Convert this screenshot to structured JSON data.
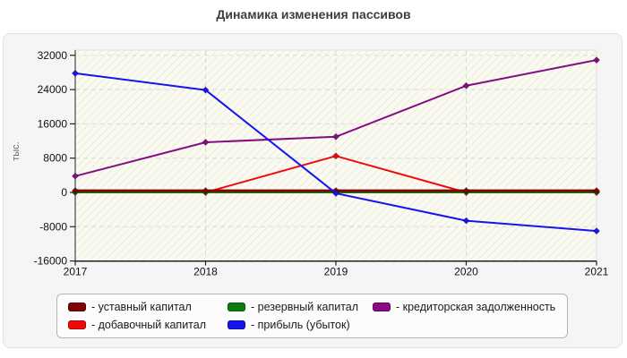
{
  "title": "Динамика изменения пассивов",
  "chart_data": {
    "type": "line",
    "title": "Динамика изменения пассивов",
    "x": [
      "2017",
      "2018",
      "2019",
      "2020",
      "2021"
    ],
    "xlabel": "",
    "ylabel": "тыс.",
    "ylim": [
      -16000,
      32000
    ],
    "y_ticks": [
      32000,
      24000,
      16000,
      8000,
      0,
      -8000,
      -16000
    ],
    "grid": "dashed horizontal and vertical, solid black zero line",
    "legend_position": "bottom",
    "plot_background": "hatched ivory",
    "series": [
      {
        "name": "уставный капитал",
        "legend_label": "- уставный капитал",
        "color": "#7b0404",
        "values": [
          400,
          400,
          400,
          400,
          400
        ]
      },
      {
        "name": "добавочный капитал",
        "legend_label": "- добавочный капитал",
        "color": "#f20808",
        "values": [
          0,
          0,
          8500,
          0,
          0
        ]
      },
      {
        "name": "резервный капитал",
        "legend_label": "- резервный капитал",
        "color": "#0c7d0c",
        "values": [
          100,
          100,
          100,
          100,
          100
        ]
      },
      {
        "name": "прибыль (убыток)",
        "legend_label": "- прибыль (убыток)",
        "color": "#1414f0",
        "values": [
          27800,
          23900,
          -200,
          -6600,
          -9000
        ]
      },
      {
        "name": "кредиторская задолженность",
        "legend_label": "- кредиторская задолженность",
        "color": "#850c85",
        "values": [
          3800,
          11700,
          13000,
          24900,
          30900
        ]
      }
    ]
  }
}
